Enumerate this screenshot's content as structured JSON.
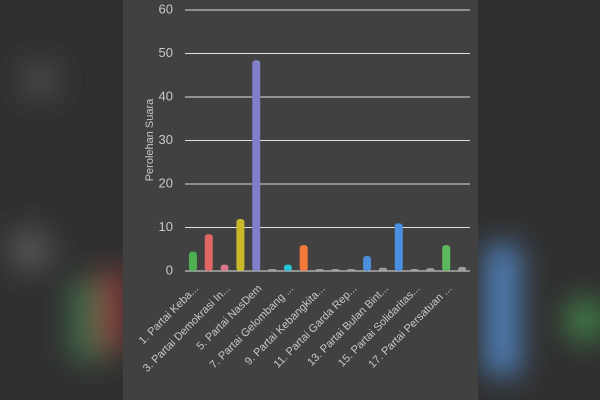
{
  "chart_data": {
    "type": "bar",
    "y_label": "Perolehan Suara",
    "categories": [
      "1. Partai Keba...",
      null,
      "3. Partai Demokrasi In...",
      null,
      "5. Partai NasDem",
      null,
      "7. Partai Gelombang ...",
      null,
      "9. Partai Kebangkita...",
      null,
      "11. Partai Garda Rep...",
      null,
      "13. Partai Bulan Bint...",
      null,
      "15. Partai Solidaritas...",
      null,
      "17. Partai Persatuan ...",
      null
    ],
    "values": [
      4,
      8,
      1,
      11.5,
      48,
      0,
      1,
      5.5,
      0,
      0,
      0,
      3,
      0.3,
      10.5,
      0,
      0.2,
      5.5,
      0.5
    ],
    "colors": [
      "#4caf50",
      "#e06666",
      "#d9788a",
      "#c9b82c",
      "#8080c8",
      "#9e9e9e",
      "#26c6da",
      "#f2793a",
      "#9e9e9e",
      "#9e9e9e",
      "#9e9e9e",
      "#4a8fd8",
      "#9e9e9e",
      "#4a90e2",
      "#9e9e9e",
      "#9e9e9e",
      "#5cb85c",
      "#9e9e9e"
    ],
    "ylim": [
      0,
      60
    ],
    "yticks": [
      0,
      10,
      20,
      30,
      40,
      50,
      60
    ],
    "grid": true
  }
}
